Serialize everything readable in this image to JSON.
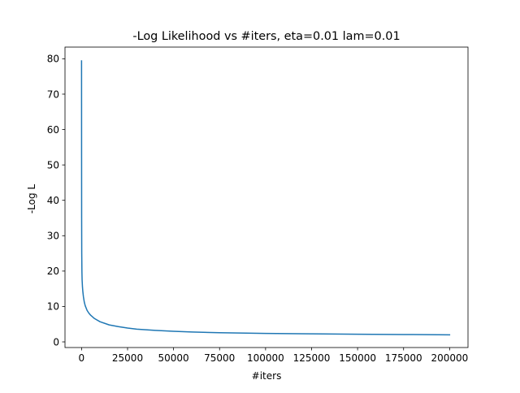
{
  "chart_data": {
    "type": "line",
    "title": "-Log Likelihood vs #iters, eta=0.01 lam=0.01",
    "xlabel": "#iters",
    "ylabel": "-Log L",
    "xlim": [
      -8999,
      209999
    ],
    "ylim": [
      -1.6,
      83.3
    ],
    "xticks": [
      0,
      25000,
      50000,
      75000,
      100000,
      125000,
      150000,
      175000,
      200000
    ],
    "xtick_labels": [
      "0",
      "25000",
      "50000",
      "75000",
      "100000",
      "125000",
      "150000",
      "175000",
      "200000"
    ],
    "yticks": [
      0,
      10,
      20,
      30,
      40,
      50,
      60,
      70,
      80
    ],
    "ytick_labels": [
      "0",
      "10",
      "20",
      "30",
      "40",
      "50",
      "60",
      "70",
      "80"
    ],
    "grid": false,
    "series": [
      {
        "color": "#1f77b4",
        "x": [
          0,
          20,
          50,
          100,
          200,
          300,
          500,
          700,
          1000,
          1500,
          2000,
          3000,
          4000,
          5000,
          7000,
          10000,
          15000,
          20000,
          25000,
          30000,
          40000,
          50000,
          60000,
          75000,
          100000,
          125000,
          150000,
          175000,
          199999
        ],
        "y": [
          79.4,
          52.0,
          35.0,
          25.0,
          19.8,
          17.5,
          15.5,
          14.2,
          12.8,
          11.2,
          10.2,
          8.9,
          8.1,
          7.5,
          6.6,
          5.7,
          4.8,
          4.3,
          3.9,
          3.6,
          3.25,
          2.98,
          2.78,
          2.6,
          2.4,
          2.28,
          2.15,
          2.08,
          2.0
        ]
      }
    ]
  }
}
